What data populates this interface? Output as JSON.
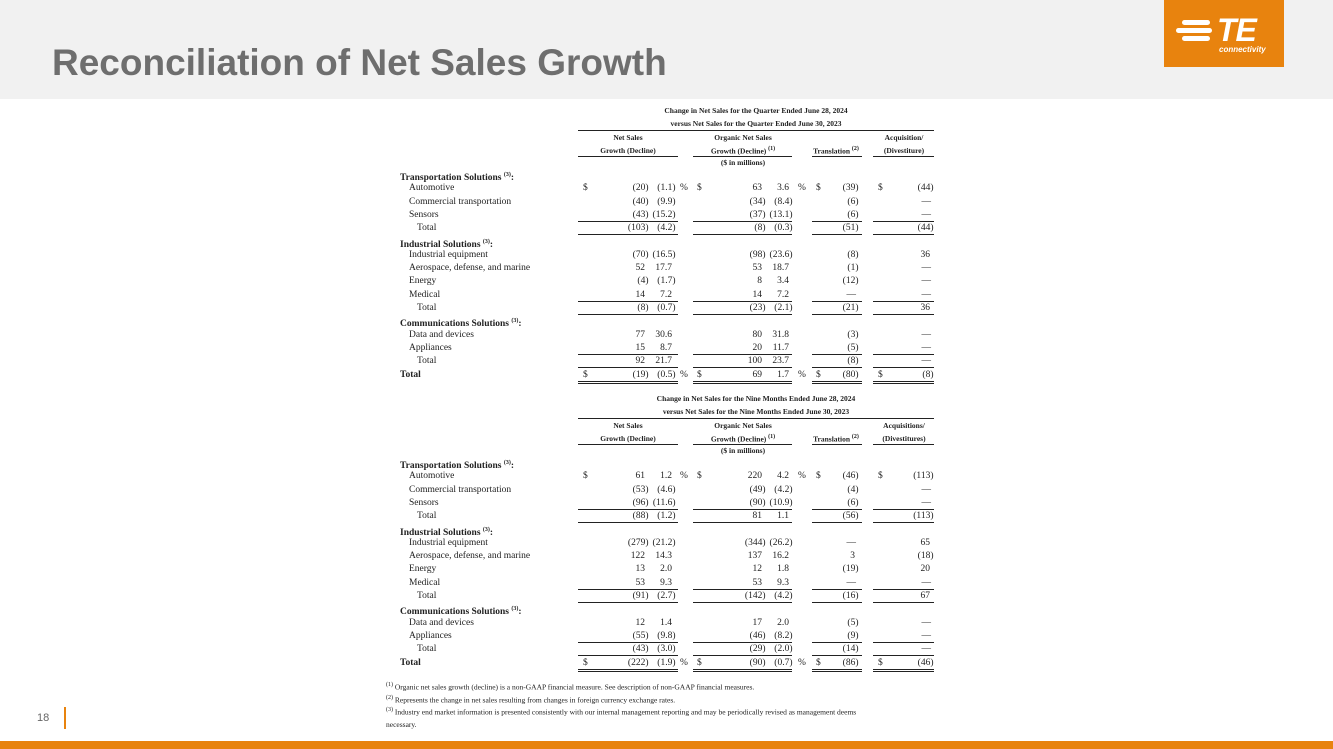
{
  "header": {
    "title": "Reconciliation of Net Sales Growth",
    "logo_text": "TE",
    "logo_sub": "connectivity"
  },
  "page_number": "18",
  "column_headers": {
    "ns1": "Net Sales",
    "ns2": "Growth (Decline)",
    "org1": "Organic Net Sales",
    "org2": "Growth (Decline)",
    "org_sup": "(1)",
    "trans": "Translation",
    "trans_sup": "(2)",
    "units": "($ in millions)",
    "pct": "%",
    "dollar": "$"
  },
  "tables": [
    {
      "title1": "Change in Net Sales for the Quarter Ended June 28, 2024",
      "title2": "versus Net Sales for the Quarter Ended June 30, 2023",
      "acq1": "Acquisition/",
      "acq2": "(Divestiture)",
      "rows": [
        {
          "t": "sec",
          "label": "Transportation Solutions",
          "sup": "(3)"
        },
        {
          "t": "item",
          "label": "Automotive",
          "v": [
            "(20)",
            "(1.1)",
            "63",
            "3.6",
            "(39)",
            "(44)"
          ],
          "dollar": true
        },
        {
          "t": "item",
          "label": "Commercial transportation",
          "v": [
            "(40)",
            "(9.9)",
            "(34)",
            "(8.4)",
            "(6)",
            "—"
          ]
        },
        {
          "t": "item",
          "label": "Sensors",
          "v": [
            "(43)",
            "(15.2)",
            "(37)",
            "(13.1)",
            "(6)",
            "—"
          ],
          "ul": true
        },
        {
          "t": "tot",
          "label": "Total",
          "v": [
            "(103)",
            "(4.2)",
            "(8)",
            "(0.3)",
            "(51)",
            "(44)"
          ],
          "ul": true
        },
        {
          "t": "sec",
          "label": "Industrial Solutions",
          "sup": "(3)"
        },
        {
          "t": "item",
          "label": "Industrial equipment",
          "v": [
            "(70)",
            "(16.5)",
            "(98)",
            "(23.6)",
            "(8)",
            "36"
          ]
        },
        {
          "t": "item",
          "label": "Aerospace, defense, and marine",
          "v": [
            "52",
            "17.7",
            "53",
            "18.7",
            "(1)",
            "—"
          ]
        },
        {
          "t": "item",
          "label": "Energy",
          "v": [
            "(4)",
            "(1.7)",
            "8",
            "3.4",
            "(12)",
            "—"
          ]
        },
        {
          "t": "item",
          "label": "Medical",
          "v": [
            "14",
            "7.2",
            "14",
            "7.2",
            "—",
            "—"
          ],
          "ul": true
        },
        {
          "t": "tot",
          "label": "Total",
          "v": [
            "(8)",
            "(0.7)",
            "(23)",
            "(2.1)",
            "(21)",
            "36"
          ],
          "ul": true
        },
        {
          "t": "sec",
          "label": "Communications Solutions",
          "sup": "(3)"
        },
        {
          "t": "item",
          "label": "Data and devices",
          "v": [
            "77",
            "30.6",
            "80",
            "31.8",
            "(3)",
            "—"
          ]
        },
        {
          "t": "item",
          "label": "Appliances",
          "v": [
            "15",
            "8.7",
            "20",
            "11.7",
            "(5)",
            "—"
          ],
          "ul": true
        },
        {
          "t": "tot",
          "label": "Total",
          "v": [
            "92",
            "21.7",
            "100",
            "23.7",
            "(8)",
            "—"
          ],
          "ul": true
        },
        {
          "t": "grand",
          "label": "Total",
          "v": [
            "(19)",
            "(0.5)",
            "69",
            "1.7",
            "(80)",
            "(8)"
          ],
          "dollar": true,
          "dul": true
        }
      ]
    },
    {
      "title1": "Change in Net Sales for the Nine Months Ended June 28, 2024",
      "title2": "versus Net Sales for the Nine Months Ended June 30, 2023",
      "acq1": "Acquisitions/",
      "acq2": "(Divestitures)",
      "rows": [
        {
          "t": "sec",
          "label": "Transportation Solutions",
          "sup": "(3)"
        },
        {
          "t": "item",
          "label": "Automotive",
          "v": [
            "61",
            "1.2",
            "220",
            "4.2",
            "(46)",
            "(113)"
          ],
          "dollar": true
        },
        {
          "t": "item",
          "label": "Commercial transportation",
          "v": [
            "(53)",
            "(4.6)",
            "(49)",
            "(4.2)",
            "(4)",
            "—"
          ]
        },
        {
          "t": "item",
          "label": "Sensors",
          "v": [
            "(96)",
            "(11.6)",
            "(90)",
            "(10.9)",
            "(6)",
            "—"
          ],
          "ul": true
        },
        {
          "t": "tot",
          "label": "Total",
          "v": [
            "(88)",
            "(1.2)",
            "81",
            "1.1",
            "(56)",
            "(113)"
          ],
          "ul": true
        },
        {
          "t": "sec",
          "label": "Industrial Solutions",
          "sup": "(3)"
        },
        {
          "t": "item",
          "label": "Industrial equipment",
          "v": [
            "(279)",
            "(21.2)",
            "(344)",
            "(26.2)",
            "—",
            "65"
          ]
        },
        {
          "t": "item",
          "label": "Aerospace, defense, and marine",
          "v": [
            "122",
            "14.3",
            "137",
            "16.2",
            "3",
            "(18)"
          ]
        },
        {
          "t": "item",
          "label": "Energy",
          "v": [
            "13",
            "2.0",
            "12",
            "1.8",
            "(19)",
            "20"
          ]
        },
        {
          "t": "item",
          "label": "Medical",
          "v": [
            "53",
            "9.3",
            "53",
            "9.3",
            "—",
            "—"
          ],
          "ul": true
        },
        {
          "t": "tot",
          "label": "Total",
          "v": [
            "(91)",
            "(2.7)",
            "(142)",
            "(4.2)",
            "(16)",
            "67"
          ],
          "ul": true
        },
        {
          "t": "sec",
          "label": "Communications Solutions",
          "sup": "(3)"
        },
        {
          "t": "item",
          "label": "Data and devices",
          "v": [
            "12",
            "1.4",
            "17",
            "2.0",
            "(5)",
            "—"
          ]
        },
        {
          "t": "item",
          "label": "Appliances",
          "v": [
            "(55)",
            "(9.8)",
            "(46)",
            "(8.2)",
            "(9)",
            "—"
          ],
          "ul": true
        },
        {
          "t": "tot",
          "label": "Total",
          "v": [
            "(43)",
            "(3.0)",
            "(29)",
            "(2.0)",
            "(14)",
            "—"
          ],
          "ul": true
        },
        {
          "t": "grand",
          "label": "Total",
          "v": [
            "(222)",
            "(1.9)",
            "(90)",
            "(0.7)",
            "(86)",
            "(46)"
          ],
          "dollar": true,
          "dul": true
        }
      ]
    }
  ],
  "footnotes": [
    {
      "sup": "(1)",
      "text": "Organic net sales growth (decline) is a non-GAAP financial measure. See description of non-GAAP financial measures."
    },
    {
      "sup": "(2)",
      "text": "Represents the change in net sales resulting from changes in foreign currency exchange rates."
    },
    {
      "sup": "(3)",
      "text": "Industry end market information is presented consistently with our internal management reporting and may be periodically revised as management deems"
    },
    {
      "sup": "",
      "text": "necessary."
    }
  ],
  "colors": {
    "accent": "#e8830e",
    "title": "#6e6e6e",
    "header_bg": "#f1f1f1"
  }
}
